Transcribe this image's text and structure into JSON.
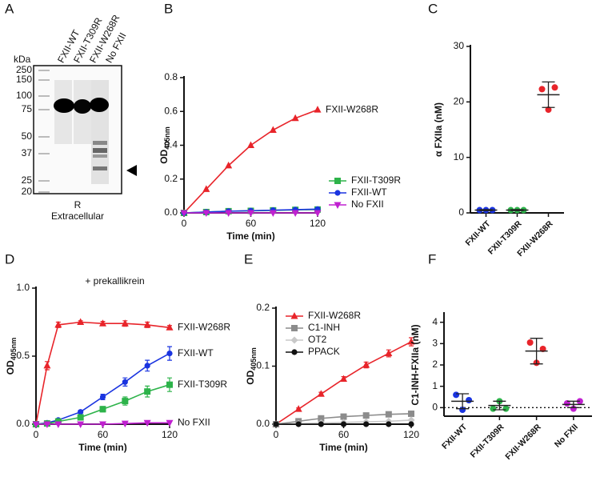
{
  "gel": {
    "panel_label": "A",
    "lanes": [
      "FXII-WT",
      "FXII-T309R",
      "FXII-W268R",
      "No FXII"
    ],
    "unit": "kDa",
    "markers": [
      250,
      150,
      100,
      75,
      50,
      37,
      25,
      20
    ],
    "caption": [
      "R",
      "Extracellular"
    ]
  },
  "chart_data": [
    {
      "type": "line",
      "panel_label": "B",
      "y_label": "OD",
      "y_label_sub": "405nm",
      "x_label": "Time (min)",
      "x": [
        0,
        20,
        40,
        60,
        80,
        100,
        120
      ],
      "xlim": [
        0,
        120
      ],
      "xticks": [
        0,
        60,
        120
      ],
      "ylim": [
        0,
        0.8
      ],
      "yticks": [
        {
          "value": 0,
          "label": "0.0"
        },
        0.2,
        0.4,
        0.6,
        0.8
      ],
      "legend": "lower right",
      "series": [
        {
          "name": "FXII-W268R",
          "color": "#e8242a",
          "marker": "triangle-up",
          "labeled_at_end": true,
          "values": [
            0,
            0.14,
            0.28,
            0.4,
            0.49,
            0.56,
            0.61
          ]
        },
        {
          "name": "FXII-T309R",
          "color": "#2db34a",
          "marker": "square",
          "values": [
            0,
            0.005,
            0.01,
            0.012,
            0.015,
            0.018,
            0.02
          ]
        },
        {
          "name": "FXII-WT",
          "color": "#1a34e0",
          "marker": "circle",
          "values": [
            0,
            0.005,
            0.01,
            0.013,
            0.016,
            0.019,
            0.022
          ]
        },
        {
          "name": "No FXII",
          "color": "#c020d0",
          "marker": "triangle-down",
          "values": [
            0,
            0,
            0,
            0,
            0,
            0,
            0
          ]
        }
      ]
    },
    {
      "type": "dot",
      "panel_label": "C",
      "y_label": "α FXIIa (nM)",
      "categories": [
        "FXII-WT",
        "FXII-T309R",
        "FXII-W268R"
      ],
      "colors": [
        "#1a34e0",
        "#2db34a",
        "#e8242a"
      ],
      "ylim": [
        0,
        30
      ],
      "yticks": [
        0,
        10,
        20,
        30
      ],
      "points": [
        [
          0.5,
          0.5,
          0.5
        ],
        [
          0.5,
          0.5,
          0.5
        ],
        [
          22.3,
          18.6,
          22.6
        ]
      ],
      "means": [
        0.5,
        0.5,
        21.3
      ],
      "sd": [
        0.1,
        0.1,
        2.3
      ]
    },
    {
      "type": "line",
      "panel_label": "D",
      "annotation": "+ prekallikrein",
      "y_label": "OD",
      "y_label_sub": "405nm",
      "x_label": "Time (min)",
      "x": [
        0,
        10,
        20,
        40,
        60,
        80,
        100,
        120
      ],
      "xlim": [
        0,
        120
      ],
      "xticks": [
        0,
        60,
        120
      ],
      "ylim": [
        0,
        1
      ],
      "yticks": [
        {
          "value": 0,
          "label": "0.0"
        },
        0.5,
        {
          "value": 1,
          "label": "1.0"
        }
      ],
      "series": [
        {
          "name": "FXII-W268R",
          "color": "#e8242a",
          "marker": "triangle-up",
          "labeled_at_end": true,
          "values": [
            0,
            0.43,
            0.73,
            0.75,
            0.74,
            0.74,
            0.73,
            0.71
          ],
          "errors": [
            0,
            0.03,
            0.02,
            0.01,
            0.015,
            0.02,
            0.02,
            0.015
          ]
        },
        {
          "name": "FXII-WT",
          "color": "#1a34e0",
          "marker": "circle",
          "labeled_at_end": true,
          "values": [
            0,
            0.01,
            0.03,
            0.09,
            0.2,
            0.31,
            0.43,
            0.52
          ],
          "errors": [
            0,
            0,
            0.01,
            0.01,
            0.02,
            0.03,
            0.04,
            0.05
          ]
        },
        {
          "name": "FXII-T309R",
          "color": "#2db34a",
          "marker": "square",
          "labeled_at_end": true,
          "values": [
            0,
            0.005,
            0.02,
            0.05,
            0.11,
            0.17,
            0.24,
            0.29
          ],
          "errors": [
            0,
            0,
            0.01,
            0.01,
            0.02,
            0.03,
            0.04,
            0.05
          ]
        },
        {
          "name": "No FXII",
          "color": "#c020d0",
          "marker": "triangle-down",
          "labeled_at_end": true,
          "values": [
            0,
            0,
            0,
            0,
            0,
            0.005,
            0.01,
            0.01
          ],
          "errors": [
            0,
            0,
            0,
            0,
            0,
            0,
            0,
            0
          ]
        }
      ]
    },
    {
      "type": "line",
      "panel_label": "E",
      "y_label": "OD",
      "y_label_sub": "405nm",
      "x_label": "Time (min)",
      "x": [
        0,
        20,
        40,
        60,
        80,
        100,
        120
      ],
      "xlim": [
        0,
        120
      ],
      "xticks": [
        0,
        60,
        120
      ],
      "ylim": [
        0,
        0.2
      ],
      "yticks": [
        {
          "value": 0,
          "label": "0.0"
        },
        0.1,
        0.2
      ],
      "legend": "upper left",
      "series": [
        {
          "name": "FXII-W268R",
          "color": "#e8242a",
          "marker": "triangle-up",
          "values": [
            0,
            0.026,
            0.052,
            0.078,
            0.102,
            0.122,
            0.142
          ],
          "errors": [
            0,
            0.002,
            0.003,
            0.004,
            0.005,
            0.006,
            0.007
          ]
        },
        {
          "name": "C1-INH",
          "color": "#8c8c8c",
          "marker": "square",
          "values": [
            0,
            0.005,
            0.01,
            0.013,
            0.015,
            0.017,
            0.018
          ],
          "errors": [
            0,
            0.001,
            0.002,
            0.002,
            0.003,
            0.003,
            0.004
          ]
        },
        {
          "name": "OT2",
          "color": "#c8c8c8",
          "marker": "diamond",
          "values": [
            0,
            0.001,
            0.002,
            0.003,
            0.004,
            0.005,
            0.007
          ],
          "errors": [
            0,
            0,
            0,
            0,
            0,
            0,
            0
          ]
        },
        {
          "name": "PPACK",
          "color": "#111111",
          "marker": "circle",
          "values": [
            0,
            0,
            0,
            0,
            0,
            0,
            0
          ],
          "errors": [
            0,
            0,
            0,
            0,
            0,
            0,
            0
          ]
        }
      ]
    },
    {
      "type": "dot",
      "panel_label": "F",
      "y_label": "C1-INH-FXIIa (nM)",
      "zero_line": true,
      "categories": [
        "FXII-WT",
        "FXII-T309R",
        "FXII-W268R",
        "No FXII"
      ],
      "colors": [
        "#1a34e0",
        "#2db34a",
        "#e8242a",
        "#c020d0"
      ],
      "ylim": [
        -0.4,
        4.4
      ],
      "yticks": [
        0,
        1,
        2,
        3,
        4
      ],
      "points": [
        [
          0.6,
          -0.1,
          0.35
        ],
        [
          -0.05,
          0.3,
          -0.05
        ],
        [
          3.05,
          2.1,
          2.75
        ],
        [
          0.2,
          -0.05,
          0.3
        ]
      ],
      "means": [
        0.3,
        0.1,
        2.65,
        0.15
      ],
      "sd": [
        0.35,
        0.2,
        0.6,
        0.15
      ]
    }
  ]
}
